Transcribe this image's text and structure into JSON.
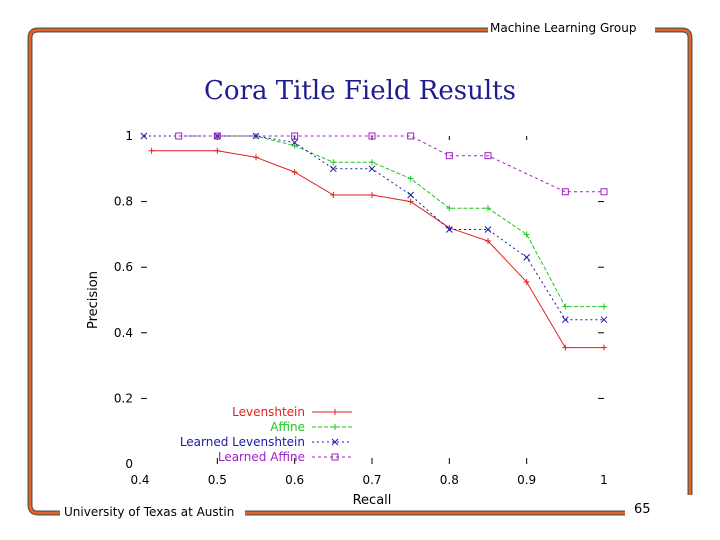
{
  "slide": {
    "header": "Machine Learning Group",
    "footer": "University of Texas at Austin",
    "page_number": "65"
  },
  "colors": {
    "frame": "#e8641e",
    "title": "#1d1d8c"
  },
  "chart_data": {
    "type": "line",
    "title": "Cora Title Field Results",
    "xlabel": "Recall",
    "ylabel": "Precision",
    "xlim": [
      0.4,
      1
    ],
    "ylim": [
      0,
      1
    ],
    "x_ticks": [
      0.4,
      0.5,
      0.6,
      0.7,
      0.8,
      0.9,
      1
    ],
    "x_tick_labels": [
      "0.4",
      "0.5",
      "0.6",
      "0.7",
      "0.8",
      "0.9",
      "1"
    ],
    "y_ticks": [
      0,
      0.2,
      0.4,
      0.6,
      0.8,
      1
    ],
    "y_tick_labels": [
      "0",
      "0.2",
      "0.4",
      "0.6",
      "0.8",
      "1"
    ],
    "grid": false,
    "legend_position": "bottom-left",
    "series": [
      {
        "name": "Levenshtein",
        "color": "#e0201c",
        "dash": "",
        "marker": "plus",
        "x": [
          0.415,
          0.5,
          0.55,
          0.6,
          0.65,
          0.7,
          0.75,
          0.8,
          0.85,
          0.9,
          0.95,
          1.0
        ],
        "y": [
          0.955,
          0.955,
          0.935,
          0.89,
          0.82,
          0.82,
          0.8,
          0.72,
          0.68,
          0.555,
          0.355,
          0.355
        ]
      },
      {
        "name": "Affine",
        "color": "#22c622",
        "dash": "4,2",
        "marker": "plus",
        "x": [
          0.5,
          0.55,
          0.6,
          0.65,
          0.7,
          0.75,
          0.8,
          0.85,
          0.9,
          0.95,
          1.0
        ],
        "y": [
          1.0,
          1.0,
          0.97,
          0.92,
          0.92,
          0.87,
          0.78,
          0.78,
          0.7,
          0.48,
          0.48
        ]
      },
      {
        "name": "Learned Levenshtein",
        "color": "#1a1aa8",
        "dash": "2,3",
        "marker": "x",
        "x": [
          0.405,
          0.5,
          0.55,
          0.6,
          0.65,
          0.7,
          0.75,
          0.8,
          0.85,
          0.9,
          0.95,
          1.0
        ],
        "y": [
          1.0,
          1.0,
          1.0,
          0.98,
          0.9,
          0.9,
          0.82,
          0.715,
          0.715,
          0.63,
          0.44,
          0.44
        ]
      },
      {
        "name": "Learned Affine",
        "color": "#a020c8",
        "dash": "3,3",
        "marker": "square",
        "x": [
          0.45,
          0.5,
          0.6,
          0.7,
          0.75,
          0.8,
          0.85,
          0.95,
          1.0
        ],
        "y": [
          1.0,
          1.0,
          1.0,
          1.0,
          1.0,
          0.94,
          0.94,
          0.83,
          0.83
        ]
      }
    ]
  }
}
